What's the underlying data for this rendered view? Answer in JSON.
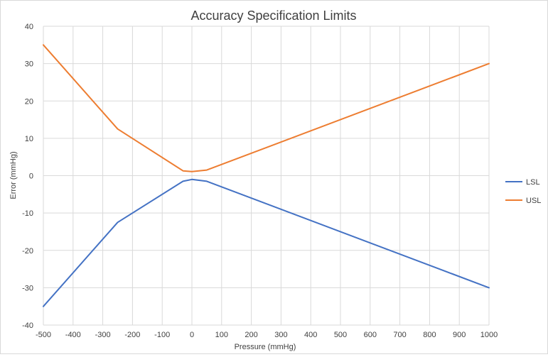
{
  "chart_data": {
    "type": "line",
    "title": "Accuracy Specification Limits",
    "xlabel": "Pressure (mmHg)",
    "ylabel": "Error (mmHg)",
    "xlim": [
      -500,
      1000
    ],
    "ylim": [
      -40,
      40
    ],
    "xticks": [
      -500,
      -400,
      -300,
      -200,
      -100,
      0,
      100,
      200,
      300,
      400,
      500,
      600,
      700,
      800,
      900,
      1000
    ],
    "yticks": [
      -40,
      -30,
      -20,
      -10,
      0,
      10,
      20,
      30,
      40
    ],
    "grid": true,
    "legend_position": "right",
    "series": [
      {
        "name": "LSL",
        "color": "#4472c4",
        "x": [
          -500,
          -250,
          -30,
          0,
          50,
          1000
        ],
        "y": [
          -35,
          -12.5,
          -1.5,
          -1,
          -1.5,
          -30
        ]
      },
      {
        "name": "USL",
        "color": "#ed7d31",
        "x": [
          -500,
          -250,
          -30,
          0,
          50,
          1000
        ],
        "y": [
          35,
          12.5,
          1.3,
          1.1,
          1.5,
          30
        ]
      }
    ]
  }
}
